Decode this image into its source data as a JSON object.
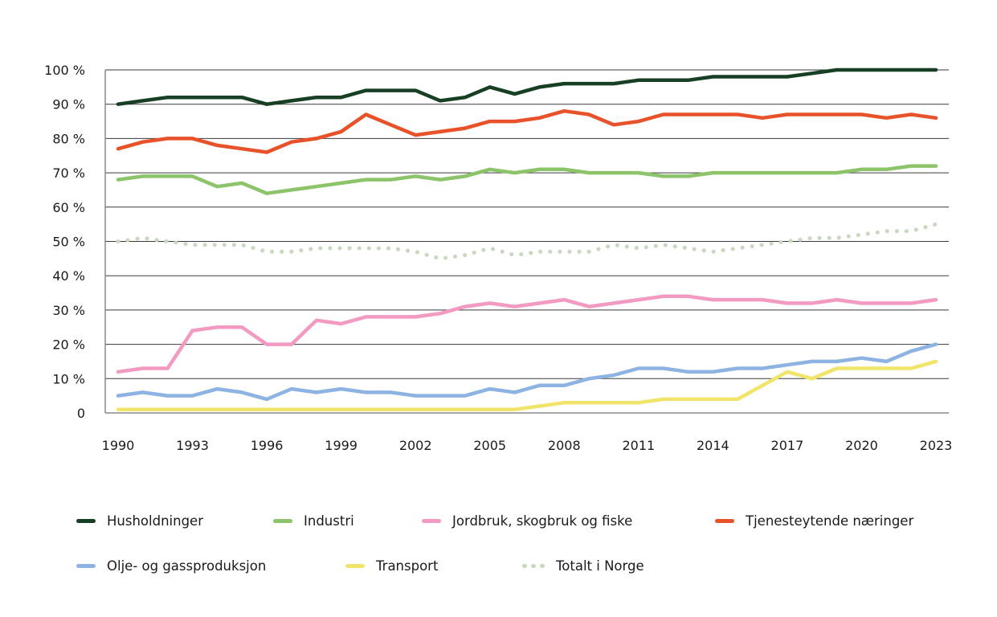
{
  "chart_data": {
    "type": "line",
    "title": "",
    "xlabel": "",
    "ylabel": "",
    "ylim": [
      0,
      100
    ],
    "y_ticks": [
      0,
      10,
      20,
      30,
      40,
      50,
      60,
      70,
      80,
      90,
      100
    ],
    "y_tick_labels": [
      "0",
      "10 %",
      "20 %",
      "30 %",
      "40 %",
      "50 %",
      "60 %",
      "70 %",
      "80 %",
      "90 %",
      "100 %"
    ],
    "x": [
      1990,
      1991,
      1992,
      1993,
      1994,
      1995,
      1996,
      1997,
      1998,
      1999,
      2000,
      2001,
      2002,
      2003,
      2004,
      2005,
      2006,
      2007,
      2008,
      2009,
      2010,
      2011,
      2012,
      2013,
      2014,
      2015,
      2016,
      2017,
      2018,
      2019,
      2020,
      2021,
      2022,
      2023
    ],
    "x_tick_labels": [
      "1990",
      "1993",
      "1996",
      "1999",
      "2002",
      "2005",
      "2008",
      "2011",
      "2014",
      "2017",
      "2020",
      "2023"
    ],
    "grid": true,
    "legend_position": "bottom",
    "series": [
      {
        "name": "Husholdninger",
        "color": "#173f24",
        "style": "solid",
        "values": [
          90,
          91,
          92,
          92,
          92,
          92,
          90,
          91,
          92,
          92,
          94,
          94,
          94,
          91,
          92,
          95,
          93,
          95,
          96,
          96,
          96,
          97,
          97,
          97,
          98,
          98,
          98,
          98,
          99,
          100,
          100,
          100,
          100,
          100
        ]
      },
      {
        "name": "Industri",
        "color": "#8cc46a",
        "style": "solid",
        "values": [
          68,
          69,
          69,
          69,
          66,
          67,
          64,
          65,
          66,
          67,
          68,
          68,
          69,
          68,
          69,
          71,
          70,
          71,
          71,
          70,
          70,
          70,
          69,
          69,
          70,
          70,
          70,
          70,
          70,
          70,
          71,
          71,
          72,
          72
        ]
      },
      {
        "name": "Jordbruk, skogbruk og fiske",
        "color": "#f29ac1",
        "style": "solid",
        "values": [
          12,
          13,
          13,
          24,
          25,
          25,
          20,
          20,
          27,
          26,
          28,
          28,
          28,
          29,
          31,
          32,
          31,
          32,
          33,
          31,
          32,
          33,
          34,
          34,
          33,
          33,
          33,
          32,
          32,
          33,
          32,
          32,
          32,
          33
        ]
      },
      {
        "name": "Tjenesteytende næringer",
        "color": "#e8522a",
        "style": "solid",
        "values": [
          77,
          79,
          80,
          80,
          78,
          77,
          76,
          79,
          80,
          82,
          87,
          84,
          81,
          82,
          83,
          85,
          85,
          86,
          88,
          87,
          84,
          85,
          87,
          87,
          87,
          87,
          86,
          87,
          87,
          87,
          87,
          86,
          87,
          86
        ]
      },
      {
        "name": "Olje- og gassproduksjon",
        "color": "#8db3e2",
        "style": "solid",
        "values": [
          5,
          6,
          5,
          5,
          7,
          6,
          4,
          7,
          6,
          7,
          6,
          6,
          5,
          5,
          5,
          7,
          6,
          8,
          8,
          10,
          11,
          13,
          13,
          12,
          12,
          13,
          13,
          14,
          15,
          15,
          16,
          15,
          18,
          20
        ]
      },
      {
        "name": "Transport",
        "color": "#f0e46a",
        "style": "solid",
        "values": [
          1,
          1,
          1,
          1,
          1,
          1,
          1,
          1,
          1,
          1,
          1,
          1,
          1,
          1,
          1,
          1,
          1,
          2,
          3,
          3,
          3,
          3,
          4,
          4,
          4,
          4,
          8,
          12,
          10,
          13,
          13,
          13,
          13,
          15
        ]
      },
      {
        "name": "Totalt i Norge",
        "color": "#c8d8be",
        "style": "dotted",
        "values": [
          50,
          51,
          50,
          49,
          49,
          49,
          47,
          47,
          48,
          48,
          48,
          48,
          47,
          45,
          46,
          48,
          46,
          47,
          47,
          47,
          49,
          48,
          49,
          48,
          47,
          48,
          49,
          50,
          51,
          51,
          52,
          53,
          53,
          55
        ]
      }
    ]
  },
  "legend": {
    "rows": [
      [
        0,
        1,
        2,
        3
      ],
      [
        4,
        5,
        6
      ]
    ]
  }
}
